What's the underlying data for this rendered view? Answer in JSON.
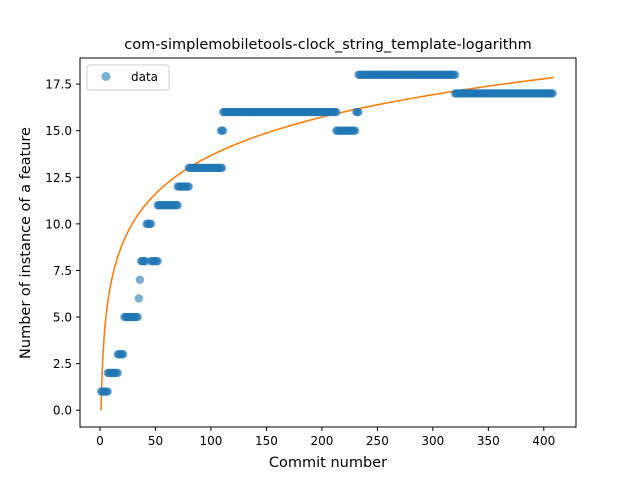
{
  "chart_data": {
    "type": "scatter",
    "title": "com-simplemobiletools-clock_string_template-logarithm",
    "xlabel": "Commit number",
    "ylabel": "Number of instance of a feature",
    "xlim": [
      -18,
      429
    ],
    "ylim": [
      -0.9,
      18.9
    ],
    "xticks": [
      0,
      50,
      100,
      150,
      200,
      250,
      300,
      350,
      400
    ],
    "yticks": [
      0.0,
      2.5,
      5.0,
      7.5,
      10.0,
      12.5,
      15.0,
      17.5
    ],
    "ytick_labels": [
      "0.0",
      "2.5",
      "5.0",
      "7.5",
      "10.0",
      "12.5",
      "15.0",
      "17.5"
    ],
    "legend": {
      "placement": "upper-left",
      "entries": [
        "data"
      ]
    },
    "colors": {
      "points": "#1f77b4",
      "fit": "#ff7f0e"
    },
    "series": [
      {
        "name": "data",
        "kind": "scatter",
        "segments": [
          {
            "x_start": 1,
            "x_end": 7,
            "y": 1
          },
          {
            "x_start": 7,
            "x_end": 16,
            "y": 2
          },
          {
            "x_start": 16,
            "x_end": 21,
            "y": 3
          },
          {
            "x_start": 22,
            "x_end": 34,
            "y": 5
          },
          {
            "x_start": 35,
            "x_end": 35,
            "y": 6
          },
          {
            "x_start": 36,
            "x_end": 36,
            "y": 7
          },
          {
            "x_start": 37,
            "x_end": 41,
            "y": 8
          },
          {
            "x_start": 42,
            "x_end": 46,
            "y": 10
          },
          {
            "x_start": 46,
            "x_end": 52,
            "y": 8
          },
          {
            "x_start": 52,
            "x_end": 70,
            "y": 11
          },
          {
            "x_start": 70,
            "x_end": 80,
            "y": 12
          },
          {
            "x_start": 80,
            "x_end": 110,
            "y": 13
          },
          {
            "x_start": 109,
            "x_end": 111,
            "y": 15
          },
          {
            "x_start": 111,
            "x_end": 213,
            "y": 16
          },
          {
            "x_start": 213,
            "x_end": 230,
            "y": 15
          },
          {
            "x_start": 231,
            "x_end": 233,
            "y": 16
          },
          {
            "x_start": 233,
            "x_end": 320,
            "y": 18
          },
          {
            "x_start": 320,
            "x_end": 408,
            "y": 17
          }
        ]
      },
      {
        "name": "",
        "kind": "line",
        "x_range": [
          1,
          409
        ],
        "y_range": [
          0,
          17.85
        ]
      }
    ]
  }
}
